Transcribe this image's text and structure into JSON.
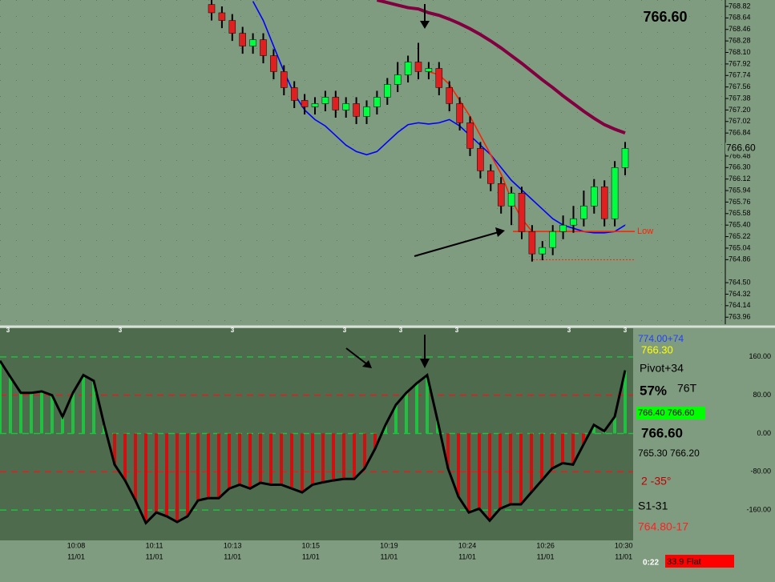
{
  "chart_data": [
    {
      "type": "candlestick",
      "ohlc": {
        "open": [
          768.85,
          768.72,
          768.6,
          768.4,
          768.2,
          768.3,
          768.05,
          767.8,
          767.55,
          767.35,
          767.25,
          767.3,
          767.4,
          767.2,
          767.3,
          767.1,
          767.25,
          767.4,
          767.6,
          767.75,
          767.95,
          767.8,
          767.85,
          767.55,
          767.3,
          767.0,
          766.6,
          766.25,
          766.05,
          765.7,
          765.9,
          765.3,
          764.95,
          765.05,
          765.3,
          765.4,
          765.5,
          765.7,
          766.0,
          765.5,
          766.3
        ],
        "high": [
          768.95,
          768.82,
          768.7,
          768.5,
          768.4,
          768.4,
          768.15,
          767.9,
          767.65,
          767.45,
          767.4,
          767.5,
          767.5,
          767.4,
          767.4,
          767.35,
          767.5,
          767.7,
          767.95,
          768.05,
          768.25,
          767.95,
          767.95,
          767.65,
          767.4,
          767.1,
          766.7,
          766.35,
          766.15,
          766.0,
          766.0,
          765.4,
          765.15,
          765.4,
          765.55,
          765.7,
          765.94,
          766.12,
          766.1,
          766.4,
          766.7
        ],
        "low": [
          768.6,
          768.48,
          768.28,
          768.08,
          768.08,
          767.93,
          767.68,
          767.43,
          767.23,
          767.13,
          767.13,
          767.18,
          767.08,
          767.08,
          766.98,
          766.98,
          767.13,
          767.28,
          767.48,
          767.63,
          767.68,
          767.68,
          767.43,
          767.18,
          766.88,
          766.48,
          766.13,
          765.93,
          765.58,
          765.4,
          765.18,
          764.83,
          764.85,
          764.93,
          765.18,
          765.28,
          765.38,
          765.58,
          765.38,
          765.38,
          766.18
        ],
        "close": [
          768.72,
          768.6,
          768.4,
          768.2,
          768.3,
          768.05,
          767.8,
          767.55,
          767.35,
          767.25,
          767.3,
          767.4,
          767.2,
          767.3,
          767.1,
          767.25,
          767.4,
          767.6,
          767.75,
          767.95,
          767.8,
          767.85,
          767.55,
          767.3,
          767.0,
          766.6,
          766.25,
          766.05,
          765.7,
          765.9,
          765.3,
          764.95,
          765.05,
          765.3,
          765.4,
          765.5,
          765.7,
          766.0,
          765.5,
          766.3,
          766.6
        ]
      },
      "up_color": "#00ff40",
      "down_color": "#e02020",
      "series": [
        {
          "color": "#0000ff",
          "values": [
            null,
            null,
            null,
            null,
            768.9,
            768.6,
            768.2,
            767.8,
            767.45,
            767.2,
            767.05,
            766.95,
            766.8,
            766.65,
            766.55,
            766.5,
            766.55,
            766.7,
            766.85,
            766.97,
            767.0,
            766.98,
            767.0,
            767.05,
            766.95,
            766.8,
            766.65,
            766.5,
            766.3,
            766.1,
            765.95,
            765.8,
            765.65,
            765.5,
            765.4,
            765.35,
            765.3,
            765.28,
            765.28,
            765.3,
            765.4
          ]
        },
        {
          "color": "#ff2000",
          "values": [
            null,
            null,
            null,
            null,
            null,
            null,
            null,
            null,
            null,
            null,
            null,
            null,
            null,
            null,
            null,
            null,
            null,
            null,
            null,
            null,
            null,
            767.8,
            767.75,
            767.6,
            767.35,
            767.1,
            766.8,
            766.5,
            766.2,
            765.8,
            765.5,
            765.3,
            null,
            null,
            null,
            null,
            null,
            null,
            null,
            null,
            null
          ]
        },
        {
          "color": "#800040",
          "values": [
            null,
            null,
            null,
            null,
            null,
            null,
            null,
            null,
            null,
            null,
            null,
            null,
            null,
            null,
            null,
            null,
            768.92,
            768.88,
            768.84,
            768.8,
            768.78,
            768.72,
            768.68,
            768.62,
            768.55,
            768.47,
            768.38,
            768.28,
            768.17,
            768.05,
            767.93,
            767.8,
            767.67,
            767.55,
            767.42,
            767.3,
            767.18,
            767.07,
            766.97,
            766.9,
            766.84
          ]
        }
      ],
      "ylim": [
        763.85,
        768.92
      ],
      "yticks": [
        {
          "value": 768.82,
          "label": "768.82"
        },
        {
          "value": 768.64,
          "label": "768.64"
        },
        {
          "value": 768.46,
          "label": "768.46"
        },
        {
          "value": 768.28,
          "label": "768.28"
        },
        {
          "value": 768.1,
          "label": "768.10"
        },
        {
          "value": 767.92,
          "label": "767.92"
        },
        {
          "value": 767.74,
          "label": "767.74"
        },
        {
          "value": 767.56,
          "label": "767.56"
        },
        {
          "value": 767.38,
          "label": "767.38"
        },
        {
          "value": 767.2,
          "label": "767.20"
        },
        {
          "value": 767.02,
          "label": "767.02"
        },
        {
          "value": 766.84,
          "label": "766.84"
        },
        {
          "value": 766.48,
          "label": "766.48"
        },
        {
          "value": 766.3,
          "label": "766.30"
        },
        {
          "value": 766.12,
          "label": "766.12"
        },
        {
          "value": 765.94,
          "label": "765.94"
        },
        {
          "value": 765.76,
          "label": "765.76"
        },
        {
          "value": 765.58,
          "label": "765.58"
        },
        {
          "value": 765.4,
          "label": "765.40"
        },
        {
          "value": 765.22,
          "label": "765.22"
        },
        {
          "value": 765.04,
          "label": "765.04"
        },
        {
          "value": 764.86,
          "label": "764.86"
        },
        {
          "value": 764.5,
          "label": "764.50"
        },
        {
          "value": 764.32,
          "label": "764.32"
        },
        {
          "value": 764.14,
          "label": "764.14"
        },
        {
          "value": 763.96,
          "label": "763.96"
        }
      ],
      "last_price": {
        "value": 766.6,
        "label": "766.60"
      },
      "title": "766.60",
      "low_line": {
        "value": 765.3,
        "label": "Low"
      },
      "low_dashed": 764.86
    },
    {
      "type": "oscillator",
      "values": [
        152,
        118,
        85,
        85,
        88,
        80,
        35,
        85,
        122,
        110,
        18,
        -65,
        -98,
        -140,
        -187,
        -165,
        -173,
        -185,
        -173,
        -140,
        -135,
        -135,
        -115,
        -107,
        -115,
        -103,
        -107,
        -107,
        -115,
        -123,
        -107,
        -102,
        -98,
        -95,
        -95,
        -73,
        -32,
        18,
        60,
        85,
        105,
        122,
        27,
        -73,
        -132,
        -165,
        -157,
        -182,
        -157,
        -148,
        -148,
        -123,
        -98,
        -73,
        -62,
        -65,
        -23,
        18,
        5,
        35,
        132
      ],
      "pos_color": "#20c040",
      "neg_color": "#d01010",
      "line_color": "#000000",
      "ylim": [
        -223.33,
        220
      ],
      "yticks": [
        {
          "value": 160,
          "label": "160.00"
        },
        {
          "value": 80,
          "label": "80.00"
        },
        {
          "value": 0,
          "label": "0.00"
        },
        {
          "value": -80,
          "label": "-80.00"
        },
        {
          "value": -160,
          "label": "-160.00"
        }
      ],
      "grid_colors": [
        "#20c040",
        "#e02020",
        "#20c040",
        "#e02020",
        "#20c040"
      ],
      "top_markers": [
        "3",
        "3",
        "3",
        "3",
        "3",
        "3",
        "3",
        "3"
      ],
      "xlabels": [
        {
          "time": "10:08",
          "date": "11/01"
        },
        {
          "time": "10:11",
          "date": "11/01"
        },
        {
          "time": "10:13",
          "date": "11/01"
        },
        {
          "time": "10:15",
          "date": "11/01"
        },
        {
          "time": "10:19",
          "date": "11/01"
        },
        {
          "time": "10:24",
          "date": "11/01"
        },
        {
          "time": "10:26",
          "date": "11/01"
        },
        {
          "time": "10:30",
          "date": "11/01"
        }
      ]
    }
  ],
  "side_labels": [
    {
      "text": "774.00+74",
      "color": "#2040ff"
    },
    {
      "text": "766.30",
      "color": "#ffff00"
    },
    {
      "text": "Pivot+34",
      "color": "#000000"
    },
    {
      "text": "57%",
      "color": "#000000"
    },
    {
      "text": "76T",
      "color": "#000000"
    },
    {
      "text": "766.40 766.60",
      "color": "#000000"
    },
    {
      "text": "766.60",
      "color": "#000000"
    },
    {
      "text": "765.30 766.20",
      "color": "#000000"
    },
    {
      "text": "2  -35°",
      "color": "#c00000"
    },
    {
      "text": "S1-31",
      "color": "#000000"
    },
    {
      "text": "764.80-17",
      "color": "#ff2020"
    }
  ],
  "status": {
    "time": "0:22",
    "state": "33.9 Flat"
  }
}
